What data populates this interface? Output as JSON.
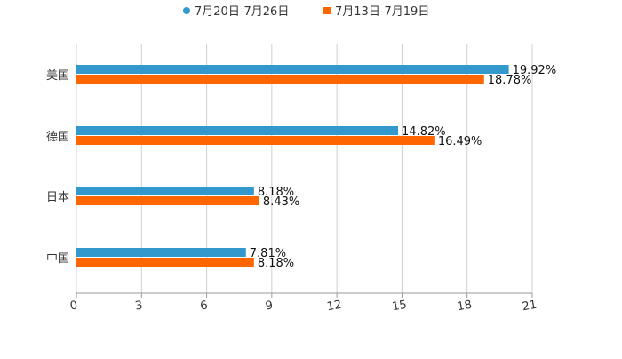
{
  "chart_data": {
    "type": "bar",
    "orientation": "horizontal",
    "title": "",
    "xlabel": "",
    "ylabel": "",
    "categories": [
      "美国",
      "德国",
      "日本",
      "中国"
    ],
    "series": [
      {
        "name": "7月20日-7月26日",
        "color": "#3399cc",
        "values": [
          19.92,
          14.82,
          8.18,
          7.81
        ],
        "labels": [
          "19.92%",
          "14.82%",
          "8.18%",
          "7.81%"
        ]
      },
      {
        "name": "7月13日-7月19日",
        "color": "#ff6600",
        "values": [
          18.78,
          16.49,
          8.43,
          8.18
        ],
        "labels": [
          "18.78%",
          "16.49%",
          "8.43%",
          "8.18%"
        ]
      }
    ],
    "xlim": [
      0,
      21
    ],
    "xticks": [
      0,
      3,
      6,
      9,
      12,
      15,
      18,
      21
    ],
    "grid": true,
    "legend_position": "top-center"
  }
}
